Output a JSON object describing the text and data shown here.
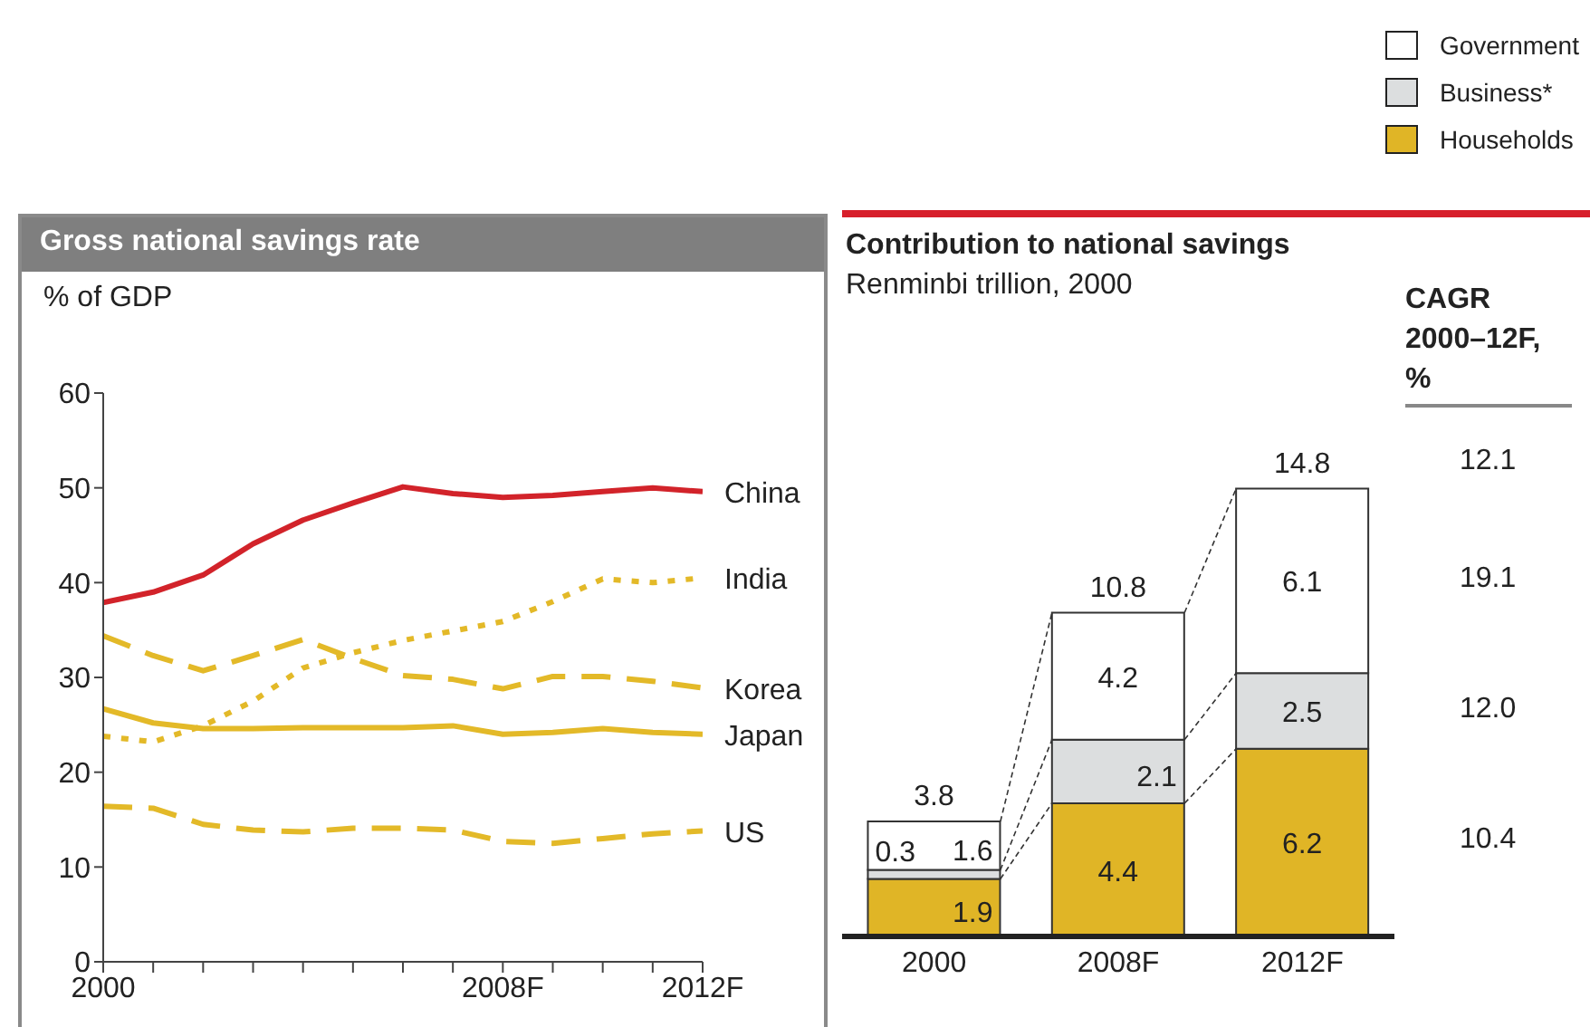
{
  "chart_data": [
    {
      "type": "line",
      "title": "Gross national savings rate",
      "ylabel": "% of GDP",
      "x": [
        2000,
        2001,
        2002,
        2003,
        2004,
        2005,
        2006,
        2007,
        2008,
        2009,
        2010,
        2011,
        2012
      ],
      "xlim": [
        2000,
        2012
      ],
      "xticks": [
        {
          "value": 2000,
          "label": "2000"
        },
        {
          "value": 2001,
          "label": null
        },
        {
          "value": 2002,
          "label": null
        },
        {
          "value": 2003,
          "label": null
        },
        {
          "value": 2004,
          "label": null
        },
        {
          "value": 2005,
          "label": null
        },
        {
          "value": 2006,
          "label": null
        },
        {
          "value": 2007,
          "label": null
        },
        {
          "value": 2008,
          "label": "2008F"
        },
        {
          "value": 2009,
          "label": null
        },
        {
          "value": 2010,
          "label": null
        },
        {
          "value": 2011,
          "label": null
        },
        {
          "value": 2012,
          "label": "2012F"
        }
      ],
      "ylim": [
        0,
        60
      ],
      "yticks": [
        0,
        10,
        20,
        30,
        40,
        50,
        60
      ],
      "legend": false,
      "marker": "none",
      "series": [
        {
          "name": "China",
          "color": "#d2232a",
          "line_style": "solid",
          "values": [
            37.9,
            39.0,
            40.8,
            44.1,
            46.6,
            48.4,
            50.1,
            49.4,
            49.0,
            49.2,
            49.6,
            50.0,
            49.6
          ]
        },
        {
          "name": "India",
          "color": "#e3b928",
          "line_style": "dotted",
          "values": [
            23.8,
            23.2,
            24.9,
            27.5,
            31.0,
            32.6,
            33.9,
            34.9,
            35.9,
            38.0,
            40.4,
            40.0,
            40.5
          ]
        },
        {
          "name": "Korea",
          "color": "#e3b928",
          "line_style": "dashed",
          "values": [
            34.4,
            32.3,
            30.7,
            32.3,
            34.0,
            32.0,
            30.2,
            29.8,
            28.8,
            30.1,
            30.1,
            29.6,
            28.9
          ]
        },
        {
          "name": "Japan",
          "color": "#e3b928",
          "line_style": "solid",
          "values": [
            26.7,
            25.2,
            24.6,
            24.6,
            24.7,
            24.7,
            24.7,
            24.9,
            24.0,
            24.2,
            24.6,
            24.2,
            24.0
          ]
        },
        {
          "name": "US",
          "color": "#e3b928",
          "line_style": "dashed",
          "values": [
            16.4,
            16.2,
            14.5,
            13.9,
            13.7,
            14.1,
            14.1,
            13.9,
            12.7,
            12.5,
            13.0,
            13.5,
            13.8
          ]
        }
      ]
    },
    {
      "type": "bar",
      "title": "Contribution to national savings",
      "subtitle": "Renminbi trillion, 2000",
      "categories": [
        "2000",
        "2008F",
        "2012F"
      ],
      "stacked": true,
      "data_labels": true,
      "legend": "top right",
      "totals": [
        "3.8",
        "10.8",
        "14.8"
      ],
      "series": [
        {
          "name": "Households",
          "color": "#e0b526",
          "values": [
            1.9,
            4.4,
            6.2
          ]
        },
        {
          "name": "Business*",
          "color": "#dcdedf",
          "values": [
            0.3,
            2.1,
            2.5
          ]
        },
        {
          "name": "Government",
          "color": "#ffffff",
          "values": [
            1.6,
            4.2,
            6.1
          ]
        }
      ],
      "annotations": [
        "CAGR 2000–12F, %",
        "12.1",
        "19.1",
        "12.0",
        "10.4"
      ]
    }
  ]
}
